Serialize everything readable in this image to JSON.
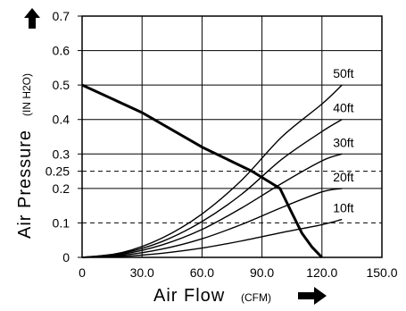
{
  "chart_data": {
    "type": "line",
    "title": "",
    "xlabel": "Air Flow",
    "xunit": "(CFM)",
    "ylabel": "Air Pressure",
    "yunit": "(IN H2O)",
    "xlim": [
      0,
      150
    ],
    "ylim": [
      0,
      0.7
    ],
    "x_ticks": [
      0,
      30,
      60,
      90,
      120,
      150
    ],
    "x_tick_labels": [
      "0",
      "30.0",
      "60.0",
      "90.0",
      "120.0",
      "150.0"
    ],
    "y_ticks": [
      0,
      0.1,
      0.2,
      0.25,
      0.3,
      0.4,
      0.5,
      0.6,
      0.7
    ],
    "y_tick_labels": [
      "0",
      "0.1",
      "0.2",
      "0.25",
      "0.3",
      "0.4",
      "0.5",
      "0.6",
      "0.7"
    ],
    "grid": true,
    "reference_lines": [
      {
        "y": 0.25,
        "style": "dashed"
      },
      {
        "y": 0.1,
        "style": "dashed"
      }
    ],
    "fan_curve": {
      "x": [
        0,
        30,
        60,
        85,
        99,
        104,
        110,
        115,
        120
      ],
      "y": [
        0.5,
        0.42,
        0.32,
        0.25,
        0.2,
        0.14,
        0.07,
        0.03,
        0.0
      ]
    },
    "series": [
      {
        "name": "50ft",
        "x": [
          0,
          20,
          40,
          60,
          80,
          100,
          120,
          130
        ],
        "y": [
          0,
          0.014,
          0.056,
          0.126,
          0.225,
          0.35,
          0.445,
          0.5
        ]
      },
      {
        "name": "40ft",
        "x": [
          0,
          20,
          40,
          60,
          80,
          100,
          120,
          130
        ],
        "y": [
          0,
          0.012,
          0.046,
          0.104,
          0.184,
          0.285,
          0.365,
          0.4
        ]
      },
      {
        "name": "30ft",
        "x": [
          0,
          20,
          40,
          60,
          80,
          100,
          120,
          130
        ],
        "y": [
          0,
          0.009,
          0.036,
          0.081,
          0.144,
          0.215,
          0.28,
          0.3
        ]
      },
      {
        "name": "20ft",
        "x": [
          0,
          20,
          40,
          60,
          80,
          100,
          120,
          130
        ],
        "y": [
          0,
          0.006,
          0.024,
          0.054,
          0.096,
          0.145,
          0.19,
          0.2
        ]
      },
      {
        "name": "10ft",
        "x": [
          0,
          20,
          40,
          60,
          80,
          100,
          120,
          130
        ],
        "y": [
          0,
          0.003,
          0.012,
          0.027,
          0.048,
          0.072,
          0.095,
          0.11
        ]
      }
    ]
  }
}
